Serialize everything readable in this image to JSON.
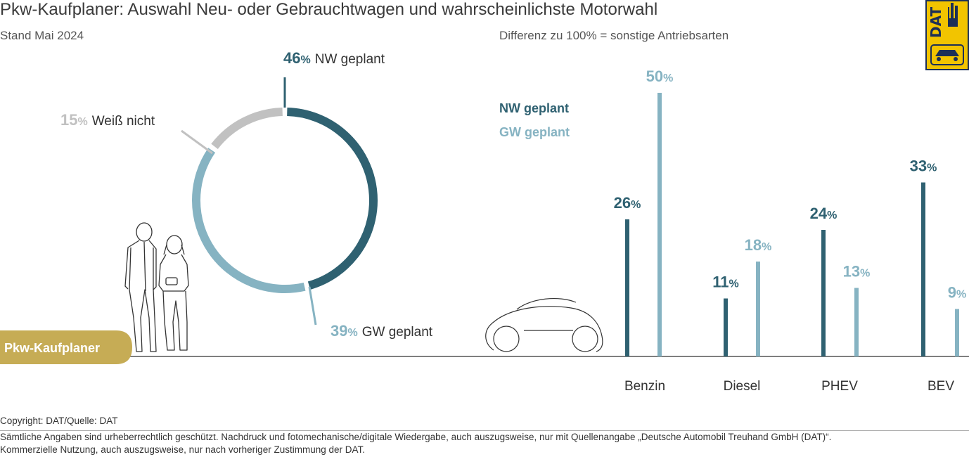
{
  "header": {
    "title": "Pkw-Kaufplaner: Auswahl Neu- oder Gebrauchtwagen und wahrscheinlichste Motorwahl",
    "subtitle": "Stand Mai 2024",
    "note": "Differenz zu 100% = sonstige Antriebsarten",
    "logo_text": "DAT"
  },
  "badge": {
    "label": "Pkw-Kaufplaner"
  },
  "colors": {
    "nw": "#2f6171",
    "gw": "#86b3c2",
    "unknown": "#c1c1c1",
    "gold": "#c6ac55"
  },
  "chart_data": [
    {
      "type": "pie",
      "slices": [
        {
          "num": "46",
          "pct": "%",
          "label": "NW geplant",
          "value": 46
        },
        {
          "num": "39",
          "pct": "%",
          "label": "GW geplant",
          "value": 39
        },
        {
          "num": "15",
          "pct": "%",
          "label": "Weiß nicht",
          "value": 15
        }
      ]
    },
    {
      "type": "bar",
      "categories": [
        "Benzin",
        "Diesel",
        "PHEV",
        "BEV"
      ],
      "legend": [
        "NW geplant",
        "GW geplant"
      ],
      "series": [
        {
          "name": "NW geplant",
          "values": [
            26,
            11,
            24,
            33
          ]
        },
        {
          "name": "GW geplant",
          "values": [
            50,
            18,
            13,
            9
          ]
        }
      ]
    }
  ],
  "footer": {
    "copyright": "Copyright: DAT/Quelle: DAT",
    "line1": "Sämtliche Angaben sind urheberrechtlich geschützt. Nachdruck und fotomechanische/digitale Wiedergabe, auch auszugsweise, nur mit Quellenangabe „Deutsche Automobil Treuhand GmbH (DAT)“.",
    "line2": "Kommerzielle Nutzung, auch auszugsweise, nur nach vorheriger Zustimmung der DAT."
  }
}
